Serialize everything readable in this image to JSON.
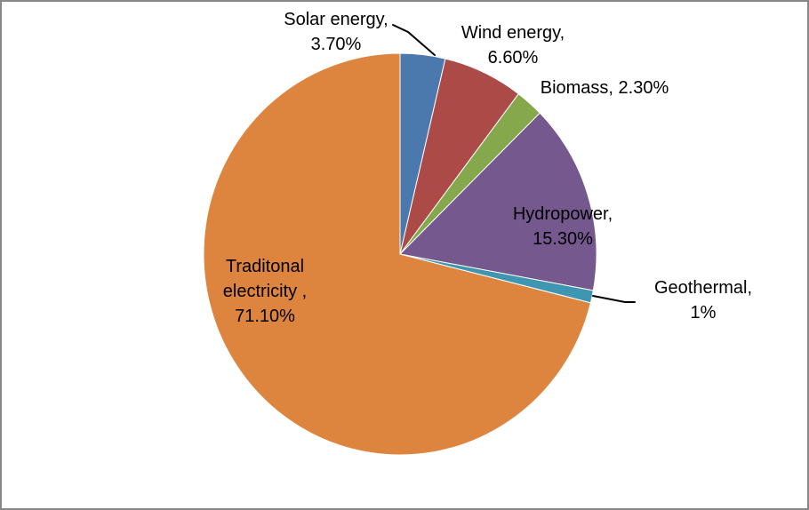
{
  "chart_data": {
    "type": "pie",
    "title": "",
    "unit": "%",
    "start_angle_deg": 0,
    "direction": "clockwise",
    "legend": "none",
    "labels_show": "category name + percent",
    "categories": [
      "Solar energy",
      "Wind energy",
      "Biomass",
      "Hydropower",
      "Geothermal",
      "Traditonal electricity"
    ],
    "values": [
      3.7,
      6.6,
      2.3,
      15.3,
      1,
      71.1
    ],
    "slices": [
      {
        "label": "Solar energy",
        "value": 3.7,
        "display": "Solar energy,\n3.70%",
        "color": "#4B79AE",
        "leader_line": true
      },
      {
        "label": "Wind energy",
        "value": 6.6,
        "display": "Wind energy,\n6.60%",
        "color": "#AB4A47",
        "leader_line": false
      },
      {
        "label": "Biomass",
        "value": 2.3,
        "display": "Biomass, 2.30%",
        "color": "#86A84D",
        "leader_line": false
      },
      {
        "label": "Hydropower",
        "value": 15.3,
        "display": "Hydropower,\n15.30%",
        "color": "#75588E",
        "leader_line": false
      },
      {
        "label": "Geothermal",
        "value": 1,
        "display": "Geothermal, 1%",
        "color": "#3E96B0",
        "leader_line": true
      },
      {
        "label": "Traditonal electricity",
        "value": 71.1,
        "display": "Traditonal\nelectricity ,\n71.10%",
        "color": "#DD843F",
        "leader_line": false
      }
    ],
    "colors": {
      "label_text": "#000000",
      "leader_line": "#000000",
      "slice_border": "#FFFFFF",
      "frame_border": "#878787",
      "background": "#FFFFFF"
    }
  }
}
